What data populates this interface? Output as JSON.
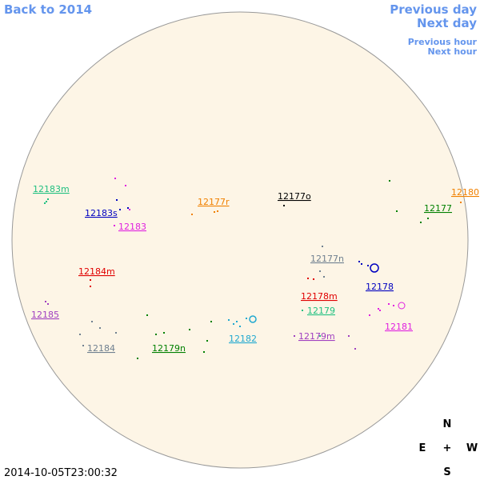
{
  "nav": {
    "back": "Back to 2014",
    "previous_day": "Previous day",
    "next_day": "Next day",
    "previous_hour": "Previous hour",
    "next_hour": "Next hour"
  },
  "regions": [
    {
      "label": "12183m",
      "color": "#20c080"
    },
    {
      "label": "12183s",
      "color": "#0000c0"
    },
    {
      "label": "12183",
      "color": "#e020e0"
    },
    {
      "label": "12177r",
      "color": "#f08000"
    },
    {
      "label": "12177o",
      "color": "#000000"
    },
    {
      "label": "12180",
      "color": "#f08000"
    },
    {
      "label": "12177",
      "color": "#008000"
    },
    {
      "label": "12177n",
      "color": "#708090"
    },
    {
      "label": "12178",
      "color": "#0000c0"
    },
    {
      "label": "12184m",
      "color": "#e00000"
    },
    {
      "label": "12178m",
      "color": "#e00000"
    },
    {
      "label": "12179",
      "color": "#20c080"
    },
    {
      "label": "12185",
      "color": "#a040c0"
    },
    {
      "label": "12181",
      "color": "#e020e0"
    },
    {
      "label": "12182",
      "color": "#20a8d0"
    },
    {
      "label": "12179m",
      "color": "#a040c0"
    },
    {
      "label": "12184",
      "color": "#708090"
    },
    {
      "label": "12179n",
      "color": "#008000"
    }
  ],
  "compass": {
    "north": "N",
    "east": "E",
    "center": "+",
    "west": "W",
    "south": "S"
  },
  "timestamp": "2014-10-05T23:00:32"
}
